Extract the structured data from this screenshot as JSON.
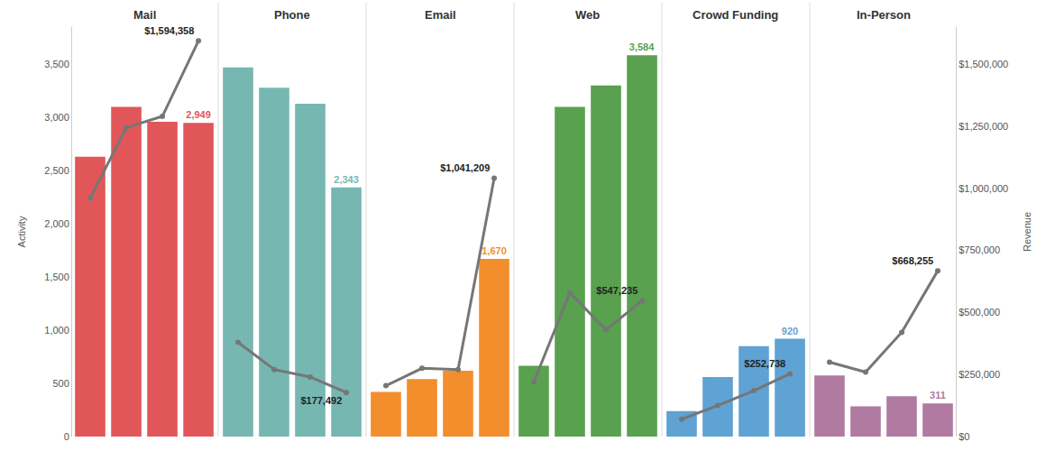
{
  "chart_data": {
    "type": "bar",
    "ylabel": "Activity",
    "y2label": "Revenue",
    "categories": [
      null,
      null,
      null,
      null
    ],
    "ylim": [
      0,
      3850
    ],
    "yticks": [
      0,
      500,
      {
        "value": 1000,
        "label": "1,000"
      },
      {
        "value": 1500,
        "label": "1,500"
      },
      {
        "value": 2000,
        "label": "2,000"
      },
      {
        "value": 2500,
        "label": "2,500"
      },
      {
        "value": 3000,
        "label": "3,000"
      },
      {
        "value": 3500,
        "label": "3,500"
      }
    ],
    "y2lim": [
      0,
      1650000
    ],
    "y2ticks": [
      {
        "value": 0,
        "label": "$0"
      },
      {
        "value": 250000,
        "label": "$250,000"
      },
      {
        "value": 500000,
        "label": "$500,000"
      },
      {
        "value": 750000,
        "label": "$750,000"
      },
      {
        "value": 1000000,
        "label": "$1,000,000"
      },
      {
        "value": 1250000,
        "label": "$1,250,000"
      },
      {
        "value": 1500000,
        "label": "$1,500,000"
      }
    ],
    "grid": false,
    "tick_labels": "y",
    "panels": [
      {
        "title": "Mail",
        "series": [
          {
            "type": "bar",
            "color": "#e15759",
            "values": [
              2630,
              3100,
              2960,
              2949
            ],
            "value_labels": [
              null,
              null,
              null,
              "2,949"
            ]
          },
          {
            "type": "line",
            "axis": "y2",
            "color": "#767676",
            "marker": "circle",
            "line_style": "solid",
            "values": [
              960000,
              1245000,
              1290000,
              1594358
            ],
            "value_labels": [
              null,
              null,
              null,
              "$1,594,358"
            ]
          }
        ]
      },
      {
        "title": "Phone",
        "series": [
          {
            "type": "bar",
            "color": "#76b7b2",
            "values": [
              3470,
              3280,
              3130,
              2343
            ],
            "value_labels": [
              null,
              null,
              null,
              "2,343"
            ]
          },
          {
            "type": "line",
            "axis": "y2",
            "color": "#767676",
            "marker": "circle",
            "line_style": "solid",
            "values": [
              380000,
              270000,
              240000,
              177492
            ],
            "value_labels": [
              null,
              null,
              null,
              "$177,492"
            ]
          }
        ]
      },
      {
        "title": "Email",
        "series": [
          {
            "type": "bar",
            "color": "#f28e2b",
            "values": [
              420,
              540,
              620,
              1670
            ],
            "value_labels": [
              null,
              null,
              null,
              "1,670"
            ]
          },
          {
            "type": "line",
            "axis": "y2",
            "color": "#767676",
            "marker": "circle",
            "line_style": "solid",
            "values": [
              205000,
              275000,
              270000,
              1041209
            ],
            "value_labels": [
              null,
              null,
              null,
              "$1,041,209"
            ]
          }
        ]
      },
      {
        "title": "Web",
        "series": [
          {
            "type": "bar",
            "color": "#59a14f",
            "values": [
              665,
              3100,
              3300,
              3584
            ],
            "value_labels": [
              null,
              null,
              null,
              "3,584"
            ]
          },
          {
            "type": "line",
            "axis": "y2",
            "color": "#767676",
            "marker": "circle",
            "line_style": "solid",
            "values": [
              220000,
              580000,
              430000,
              547235
            ],
            "value_labels": [
              null,
              null,
              null,
              "$547,235"
            ]
          }
        ]
      },
      {
        "title": "Crowd Funding",
        "series": [
          {
            "type": "bar",
            "color": "#5fa2d4",
            "values": [
              240,
              560,
              850,
              920
            ],
            "value_labels": [
              null,
              null,
              null,
              "920"
            ]
          },
          {
            "type": "line",
            "axis": "y2",
            "color": "#767676",
            "marker": "circle",
            "line_style": "solid",
            "values": [
              70000,
              125000,
              185000,
              252738
            ],
            "value_labels": [
              null,
              null,
              null,
              "$252,738"
            ]
          }
        ]
      },
      {
        "title": "In-Person",
        "series": [
          {
            "type": "bar",
            "color": "#b07aa1",
            "values": [
              575,
              285,
              380,
              311
            ],
            "value_labels": [
              null,
              null,
              null,
              "311"
            ]
          },
          {
            "type": "line",
            "axis": "y2",
            "color": "#767676",
            "marker": "circle",
            "line_style": "solid",
            "values": [
              300000,
              260000,
              420000,
              668255
            ],
            "value_labels": [
              null,
              null,
              null,
              "$668,255"
            ]
          }
        ]
      }
    ]
  }
}
